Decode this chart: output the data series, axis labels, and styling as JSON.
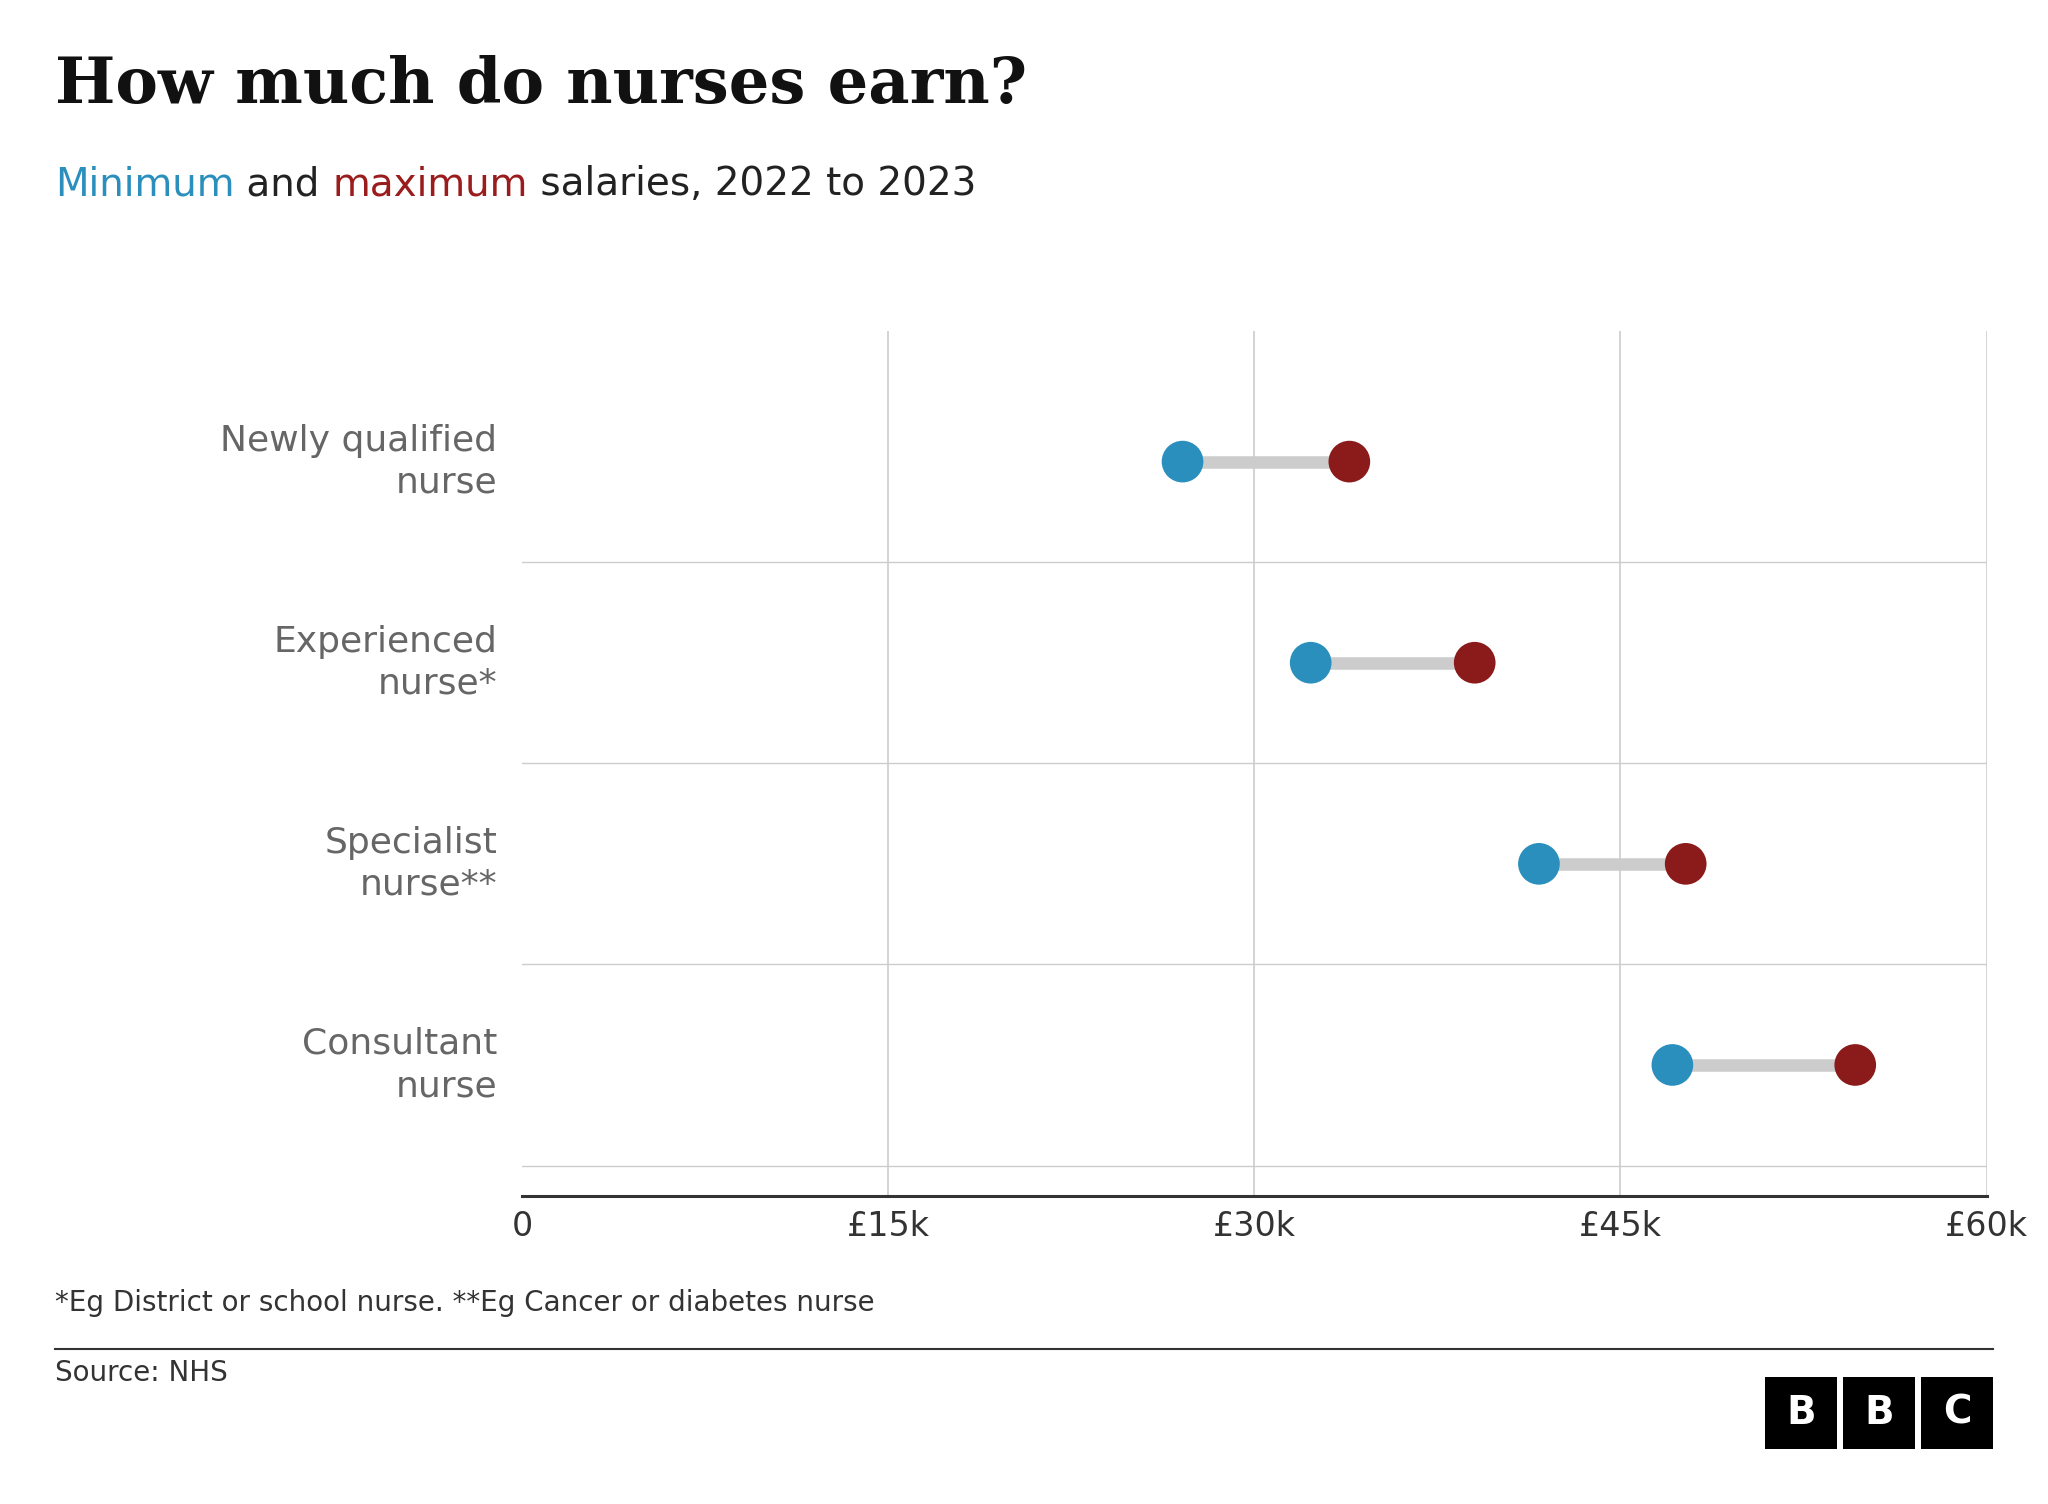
{
  "title": "How much do nurses earn?",
  "subtitle_parts": [
    {
      "text": "Minimum",
      "color": "#2a8fbd"
    },
    {
      "text": " and ",
      "color": "#222222"
    },
    {
      "text": "maximum",
      "color": "#9b1c1c"
    },
    {
      "text": " salaries, 2022 to 2023",
      "color": "#222222"
    }
  ],
  "categories": [
    "Newly qualified\nnurse",
    "Experienced\nnurse*",
    "Specialist\nnurse**",
    "Consultant\nnurse"
  ],
  "min_values": [
    27055,
    32306,
    41659,
    47126
  ],
  "max_values": [
    33890,
    39027,
    47672,
    54619
  ],
  "min_color": "#2a8fbd",
  "max_color": "#8b1a1a",
  "connector_color": "#cccccc",
  "xlim": [
    0,
    60000
  ],
  "xtick_values": [
    0,
    15000,
    30000,
    45000,
    60000
  ],
  "xtick_labels": [
    "0",
    "£15k",
    "£30k",
    "£45k",
    "£60k"
  ],
  "footnote": "*Eg District or school nurse. **Eg Cancer or diabetes nurse",
  "source": "Source: NHS",
  "bg_color": "#ffffff",
  "grid_color": "#cccccc",
  "label_color": "#666666",
  "dot_size": 900,
  "connector_lw": 9,
  "title_fontsize": 46,
  "subtitle_fontsize": 28,
  "label_fontsize": 26,
  "tick_fontsize": 24,
  "footnote_fontsize": 20,
  "source_fontsize": 20
}
